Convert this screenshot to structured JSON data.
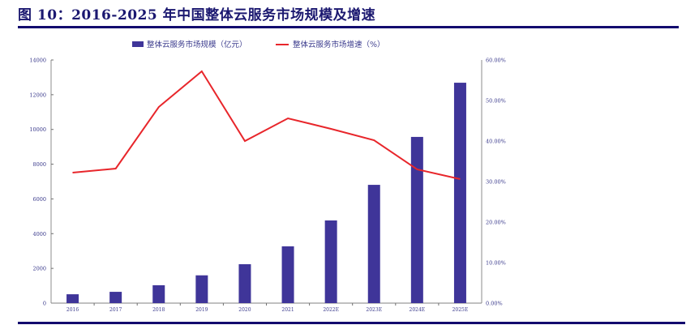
{
  "header": {
    "title": "图 10：2016-2025 年中国整体云服务市场规模及增速"
  },
  "colors": {
    "bar": "#3f3599",
    "line": "#e8262b",
    "axis_text": "#3a3a8c",
    "axis_line": "#a0a0a0",
    "rule": "#120a6e",
    "title": "#1b1870"
  },
  "chart_data": {
    "type": "bar+line",
    "title": "2016-2025 年中国整体云服务市场规模及增速",
    "categories": [
      "2016",
      "2017",
      "2018",
      "2019",
      "2020",
      "2021",
      "2022E",
      "2023E",
      "2024E",
      "2025E"
    ],
    "series": [
      {
        "name": "整体云服务市场规模（亿元）",
        "type": "bar",
        "axis": "left",
        "values": [
          510,
          650,
          1030,
          1600,
          2240,
          3270,
          4760,
          6810,
          9570,
          12690
        ]
      },
      {
        "name": "整体云服务市场增速（%）",
        "type": "line",
        "axis": "right",
        "values": [
          32.2,
          33.2,
          48.4,
          57.2,
          40.0,
          45.6,
          43.0,
          40.2,
          33.0,
          30.6
        ]
      }
    ],
    "left_axis": {
      "ylim": [
        0,
        14000
      ],
      "ticks": [
        "0",
        "2000",
        "4000",
        "6000",
        "8000",
        "10000",
        "12000",
        "14000"
      ]
    },
    "right_axis": {
      "ylim": [
        0,
        60
      ],
      "ticks": [
        "0.00%",
        "10.00%",
        "20.00%",
        "30.00%",
        "40.00%",
        "50.00%",
        "60.00%"
      ]
    },
    "legend": {
      "position": "top",
      "items": [
        "整体云服务市场规模（亿元）",
        "整体云服务市场增速（%）"
      ]
    },
    "grid": false,
    "xlabel": "",
    "ylabel": ""
  }
}
